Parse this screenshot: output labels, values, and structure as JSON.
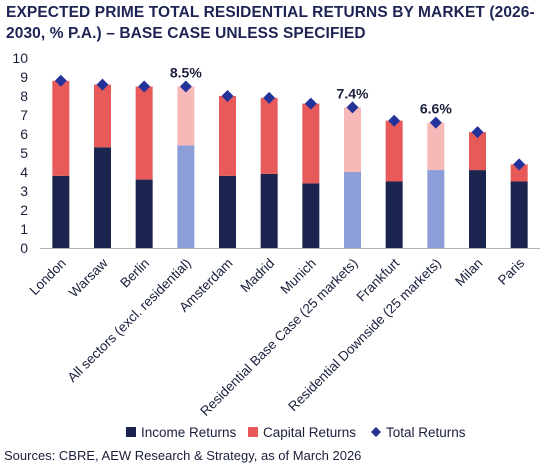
{
  "chart_data": {
    "type": "bar",
    "title": "EXPECTED PRIME TOTAL RESIDENTIAL RETURNS BY MARKET (2026-2030, % P.A.) – BASE CASE UNLESS SPECIFIED",
    "categories": [
      "London",
      "Warsaw",
      "Berlin",
      "All sectors (excl. residential)",
      "Amsterdam",
      "Madrid",
      "Munich",
      "Residential Base Case (25 markets)",
      "Frankfurt",
      "Residential Downside (25 markets)",
      "Milan",
      "Paris"
    ],
    "highlighted_categories": [
      "All sectors (excl. residential)",
      "Residential Base Case (25 markets)",
      "Residential Downside (25 markets)"
    ],
    "series": [
      {
        "name": "Income Returns",
        "stacked": true,
        "values": [
          3.8,
          5.3,
          3.6,
          5.4,
          3.8,
          3.9,
          3.4,
          4.0,
          3.5,
          4.1,
          4.1,
          3.5
        ]
      },
      {
        "name": "Capital Returns",
        "stacked": true,
        "values": [
          5.0,
          3.3,
          4.9,
          3.1,
          4.2,
          4.0,
          4.2,
          3.4,
          3.2,
          2.5,
          2.0,
          0.9
        ]
      },
      {
        "name": "Total Returns",
        "type": "marker",
        "values": [
          8.8,
          8.6,
          8.5,
          8.5,
          8.0,
          7.9,
          7.6,
          7.4,
          6.7,
          6.6,
          6.1,
          4.4
        ]
      }
    ],
    "data_labels": [
      {
        "category": "All sectors (excl. residential)",
        "text": "8.5%"
      },
      {
        "category": "Residential Base Case (25 markets)",
        "text": "7.4%"
      },
      {
        "category": "Residential Downside (25 markets)",
        "text": "6.6%"
      }
    ],
    "ylim": [
      0,
      10
    ],
    "yticks": [
      "0",
      "1",
      "2",
      "3",
      "4",
      "5",
      "6",
      "7",
      "8",
      "9",
      "10"
    ],
    "grid": false,
    "legend_position": "bottom",
    "colors": {
      "income": "#1c2550",
      "capital": "#e85a5a",
      "income_highlight": "#8b9ed8",
      "capital_highlight": "#f7b8b8",
      "total": "#24339a"
    }
  },
  "source_note": "Sources: CBRE, AEW Research & Strategy, as of March 2026"
}
